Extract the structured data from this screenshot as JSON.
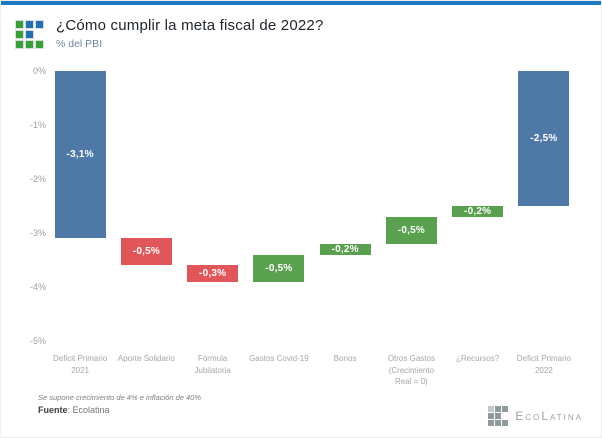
{
  "page": {
    "title": "¿Cómo cumplir la meta fiscal de 2022?",
    "subtitle": "% del PBI"
  },
  "chart_data": {
    "type": "bar",
    "subtype": "waterfall",
    "title": "¿Cómo cumplir la meta fiscal de 2022?",
    "ylabel": "% del PBI",
    "ylim": [
      -5,
      0
    ],
    "grid": false,
    "legend": "none",
    "y_ticks": [
      "0%",
      "-1%",
      "-2%",
      "-3%",
      "-4%",
      "-5%"
    ],
    "colors": {
      "blue": "#4e79a7",
      "red": "#e15759",
      "green": "#59a14f"
    },
    "categories": [
      "Deficit Primario 2021",
      "Aporte Solidario",
      "Fórmula Jubilatoria",
      "Gastos Covid-19",
      "Bonos",
      "Otros Gastos (Crecimiento Real = 0)",
      "¿Recursos?",
      "Deficit Primario 2022"
    ],
    "bars": [
      {
        "id": "deficit-primario-2021",
        "category": "Deficit Primario 2021",
        "tick": "Deficit Primario\n2021",
        "label": "-3,1%",
        "start": 0,
        "end": -3.1,
        "delta": -3.1,
        "color": "blue"
      },
      {
        "id": "aporte-solidario",
        "category": "Aporte Solidario",
        "tick": "Aporte Solidario",
        "label": "-0,5%",
        "start": -3.1,
        "end": -3.6,
        "delta": -0.5,
        "color": "red"
      },
      {
        "id": "formula-jubilatoria",
        "category": "Fórmula Jubilatoria",
        "tick": "Fórmula\nJubilatoria",
        "label": "-0,3%",
        "start": -3.6,
        "end": -3.9,
        "delta": -0.3,
        "color": "red"
      },
      {
        "id": "gastos-covid-19",
        "category": "Gastos Covid-19",
        "tick": "Gastos Covid-19",
        "label": "-0,5%",
        "start": -3.9,
        "end": -3.4,
        "delta": 0.5,
        "color": "green"
      },
      {
        "id": "bonos",
        "category": "Bonos",
        "tick": "Bonos",
        "label": "-0,2%",
        "start": -3.4,
        "end": -3.2,
        "delta": 0.2,
        "color": "green"
      },
      {
        "id": "otros-gastos",
        "category": "Otros Gastos (Crecimiento Real = 0)",
        "tick": "Otros Gastos\n(Crecimiento\nReal = 0)",
        "label": "-0,5%",
        "start": -3.2,
        "end": -2.7,
        "delta": 0.5,
        "color": "green"
      },
      {
        "id": "recursos",
        "category": "¿Recursos?",
        "tick": "¿Recursos?",
        "label": "-0,2%",
        "start": -2.7,
        "end": -2.5,
        "delta": 0.2,
        "color": "green"
      },
      {
        "id": "deficit-primario-2022",
        "category": "Deficit Primario 2022",
        "tick": "Deficit Primario\n2022",
        "label": "-2,5%",
        "start": 0,
        "end": -2.5,
        "delta": -2.5,
        "color": "blue"
      }
    ]
  },
  "footer": {
    "note": "Se supone crecimiento de 4% e inflación de 40%",
    "source_label": "Fuente",
    "source_value": ": Ecolatina"
  },
  "branding": {
    "wordmark": "EcoLatina"
  }
}
